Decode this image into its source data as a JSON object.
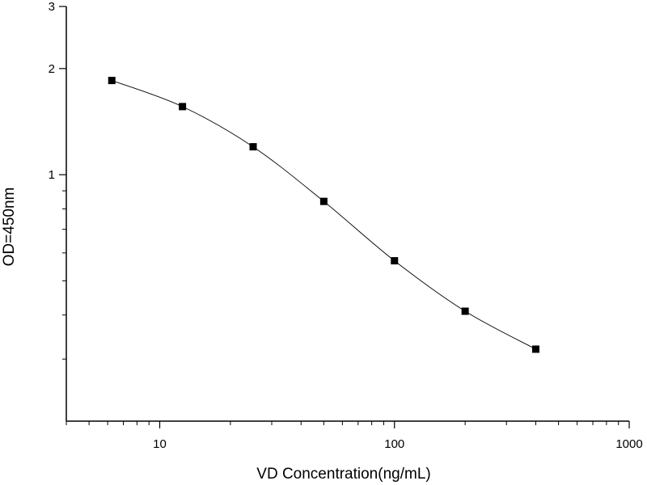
{
  "chart_data": {
    "type": "line",
    "title": "",
    "xlabel": "VD Concentration(ng/mL)",
    "ylabel": "OD=450nm",
    "x_scale": "log",
    "y_scale": "log",
    "xlim": [
      4,
      1000
    ],
    "ylim": [
      0.2,
      3
    ],
    "x_ticks": [
      10,
      100,
      1000
    ],
    "x_tick_labels": [
      "10",
      "100",
      "1000"
    ],
    "y_ticks": [
      1,
      2,
      3
    ],
    "y_tick_labels": [
      "1",
      "2",
      "3"
    ],
    "grid": false,
    "legend": "none",
    "series": [
      {
        "x": [
          6.25,
          12.5,
          25,
          50,
          100,
          200,
          400
        ],
        "y": [
          1.85,
          1.56,
          1.2,
          0.84,
          0.57,
          0.41,
          0.32
        ],
        "marker": "square",
        "color": "#000000"
      }
    ]
  }
}
